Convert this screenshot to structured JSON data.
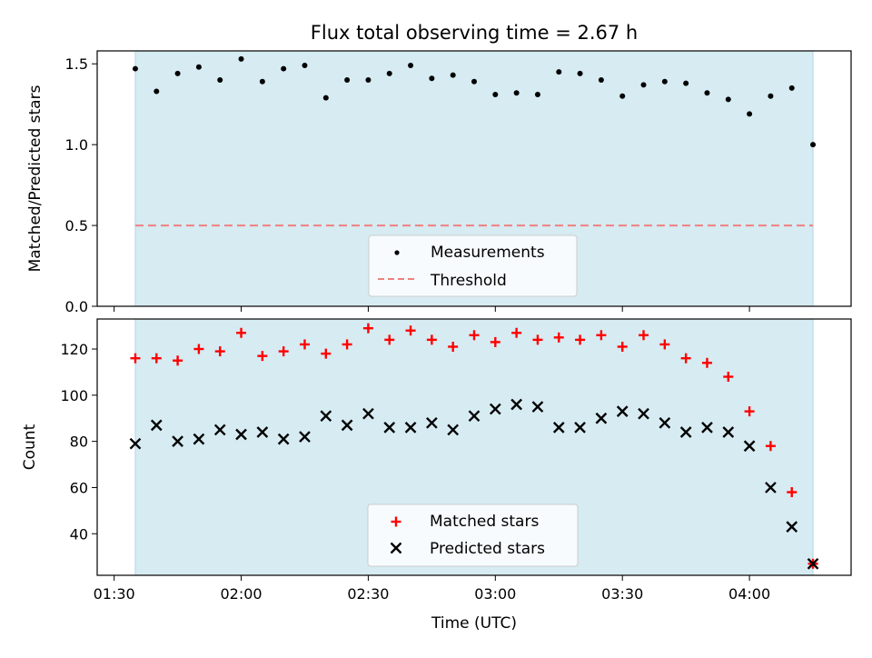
{
  "title": "Flux total observing time = 2.67 h",
  "colors": {
    "shade": "#add8e6",
    "measurement": "#000000",
    "threshold": "#f08080",
    "matched": "#ff0000",
    "predicted": "#000000"
  },
  "chart_data": [
    {
      "type": "scatter",
      "panel": "top",
      "ylabel": "Matched/Predicted stars",
      "xlabel": "",
      "xlim": [
        "01:26",
        "04:24"
      ],
      "ylim": [
        0,
        1.58
      ],
      "y_ticks": [
        "0.0",
        "0.5",
        "1.0",
        "1.5"
      ],
      "shaded_span": [
        "01:35",
        "04:15"
      ],
      "legend_position": "lower center",
      "legend": [
        "Measurements",
        "Threshold"
      ],
      "threshold": 0.5,
      "x": [
        "01:35",
        "01:40",
        "01:45",
        "01:50",
        "01:55",
        "02:00",
        "02:05",
        "02:10",
        "02:15",
        "02:20",
        "02:25",
        "02:30",
        "02:35",
        "02:40",
        "02:45",
        "02:50",
        "02:55",
        "03:00",
        "03:05",
        "03:10",
        "03:15",
        "03:20",
        "03:25",
        "03:30",
        "03:35",
        "03:40",
        "03:45",
        "03:50",
        "03:55",
        "04:00",
        "04:05",
        "04:10",
        "04:15"
      ],
      "series": [
        {
          "name": "Measurements",
          "values": [
            1.47,
            1.33,
            1.44,
            1.48,
            1.4,
            1.53,
            1.39,
            1.47,
            1.49,
            1.29,
            1.4,
            1.4,
            1.44,
            1.49,
            1.41,
            1.43,
            1.39,
            1.31,
            1.32,
            1.31,
            1.45,
            1.44,
            1.4,
            1.3,
            1.37,
            1.39,
            1.38,
            1.32,
            1.28,
            1.19,
            1.3,
            1.35,
            1.0
          ]
        }
      ]
    },
    {
      "type": "scatter",
      "panel": "bottom",
      "ylabel": "Count",
      "xlabel": "Time (UTC)",
      "xlim": [
        "01:26",
        "04:24"
      ],
      "ylim": [
        22,
        133
      ],
      "y_ticks": [
        "40",
        "60",
        "80",
        "100",
        "120"
      ],
      "x_ticks": [
        "01:30",
        "02:00",
        "02:30",
        "03:00",
        "03:30",
        "04:00"
      ],
      "shaded_span": [
        "01:35",
        "04:15"
      ],
      "legend_position": "lower center",
      "legend": [
        "Matched stars",
        "Predicted stars"
      ],
      "x": [
        "01:35",
        "01:40",
        "01:45",
        "01:50",
        "01:55",
        "02:00",
        "02:05",
        "02:10",
        "02:15",
        "02:20",
        "02:25",
        "02:30",
        "02:35",
        "02:40",
        "02:45",
        "02:50",
        "02:55",
        "03:00",
        "03:05",
        "03:10",
        "03:15",
        "03:20",
        "03:25",
        "03:30",
        "03:35",
        "03:40",
        "03:45",
        "03:50",
        "03:55",
        "04:00",
        "04:05",
        "04:10",
        "04:15"
      ],
      "series": [
        {
          "name": "Matched stars",
          "values": [
            116,
            116,
            115,
            120,
            119,
            127,
            117,
            119,
            122,
            118,
            122,
            129,
            124,
            128,
            124,
            121,
            126,
            123,
            127,
            124,
            125,
            124,
            126,
            121,
            126,
            122,
            116,
            114,
            108,
            93,
            78,
            58,
            27
          ]
        },
        {
          "name": "Predicted stars",
          "values": [
            79,
            87,
            80,
            81,
            85,
            83,
            84,
            81,
            82,
            91,
            87,
            92,
            86,
            86,
            88,
            85,
            91,
            94,
            96,
            95,
            86,
            86,
            90,
            93,
            92,
            88,
            84,
            86,
            84,
            78,
            60,
            43,
            27
          ]
        }
      ]
    }
  ]
}
